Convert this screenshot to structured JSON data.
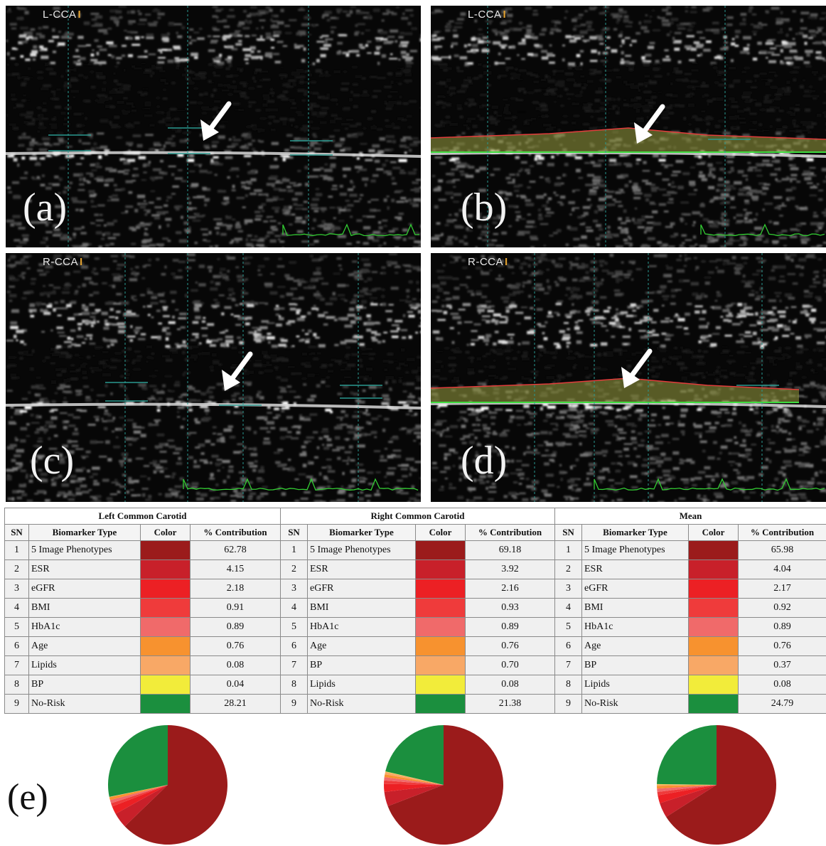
{
  "panels": {
    "a": {
      "view": "L-CCA",
      "letter": "(a)",
      "segmented": false
    },
    "b": {
      "view": "L-CCA",
      "letter": "(b)",
      "segmented": true
    },
    "c": {
      "view": "R-CCA",
      "letter": "(c)",
      "segmented": false
    },
    "d": {
      "view": "R-CCA",
      "letter": "(d)",
      "segmented": true
    }
  },
  "panel_e_label": "(e)",
  "table": {
    "columns": {
      "sn": "SN",
      "biomarker": "Biomarker Type",
      "color": "Color",
      "contribution": "% Contribution"
    },
    "groups": [
      {
        "title": "Left Common Carotid",
        "rows": [
          {
            "sn": "1",
            "biomarker": "5 Image Phenotypes",
            "color": "#9b1b1b",
            "contribution": "62.78"
          },
          {
            "sn": "2",
            "biomarker": "ESR",
            "color": "#c8202a",
            "contribution": "4.15"
          },
          {
            "sn": "3",
            "biomarker": "eGFR",
            "color": "#ec2024",
            "contribution": "2.18"
          },
          {
            "sn": "4",
            "biomarker": "BMI",
            "color": "#ef3b3b",
            "contribution": "0.91"
          },
          {
            "sn": "5",
            "biomarker": "HbA1c",
            "color": "#f06a6a",
            "contribution": "0.89"
          },
          {
            "sn": "6",
            "biomarker": "Age",
            "color": "#f7922f",
            "contribution": "0.76"
          },
          {
            "sn": "7",
            "biomarker": "Lipids",
            "color": "#f8a866",
            "contribution": "0.08"
          },
          {
            "sn": "8",
            "biomarker": "BP",
            "color": "#f2ec3a",
            "contribution": "0.04"
          },
          {
            "sn": "9",
            "biomarker": "No-Risk",
            "color": "#1b8f3e",
            "contribution": "28.21"
          }
        ]
      },
      {
        "title": "Right Common Carotid",
        "rows": [
          {
            "sn": "1",
            "biomarker": "5 Image Phenotypes",
            "color": "#9b1b1b",
            "contribution": "69.18"
          },
          {
            "sn": "2",
            "biomarker": "ESR",
            "color": "#c8202a",
            "contribution": "3.92"
          },
          {
            "sn": "3",
            "biomarker": "eGFR",
            "color": "#ec2024",
            "contribution": "2.16"
          },
          {
            "sn": "4",
            "biomarker": "BMI",
            "color": "#ef3b3b",
            "contribution": "0.93"
          },
          {
            "sn": "5",
            "biomarker": "HbA1c",
            "color": "#f06a6a",
            "contribution": "0.89"
          },
          {
            "sn": "6",
            "biomarker": "Age",
            "color": "#f7922f",
            "contribution": "0.76"
          },
          {
            "sn": "7",
            "biomarker": "BP",
            "color": "#f8a866",
            "contribution": "0.70"
          },
          {
            "sn": "8",
            "biomarker": "Lipids",
            "color": "#f2ec3a",
            "contribution": "0.08"
          },
          {
            "sn": "9",
            "biomarker": "No-Risk",
            "color": "#1b8f3e",
            "contribution": "21.38"
          }
        ]
      },
      {
        "title": "Mean",
        "rows": [
          {
            "sn": "1",
            "biomarker": "5 Image Phenotypes",
            "color": "#9b1b1b",
            "contribution": "65.98"
          },
          {
            "sn": "2",
            "biomarker": "ESR",
            "color": "#c8202a",
            "contribution": "4.04"
          },
          {
            "sn": "3",
            "biomarker": "eGFR",
            "color": "#ec2024",
            "contribution": "2.17"
          },
          {
            "sn": "4",
            "biomarker": "BMI",
            "color": "#ef3b3b",
            "contribution": "0.92"
          },
          {
            "sn": "5",
            "biomarker": "HbA1c",
            "color": "#f06a6a",
            "contribution": "0.89"
          },
          {
            "sn": "6",
            "biomarker": "Age",
            "color": "#f7922f",
            "contribution": "0.76"
          },
          {
            "sn": "7",
            "biomarker": "BP",
            "color": "#f8a866",
            "contribution": "0.37"
          },
          {
            "sn": "8",
            "biomarker": "Lipids",
            "color": "#f2ec3a",
            "contribution": "0.08"
          },
          {
            "sn": "9",
            "biomarker": "No-Risk",
            "color": "#1b8f3e",
            "contribution": "24.79"
          }
        ]
      }
    ]
  },
  "chart_data": [
    {
      "type": "pie",
      "categories": [
        "5 Image Phenotypes",
        "ESR",
        "eGFR",
        "BMI",
        "HbA1c",
        "Age",
        "Lipids",
        "BP",
        "No-Risk"
      ],
      "values": [
        62.78,
        4.15,
        2.18,
        0.91,
        0.89,
        0.76,
        0.08,
        0.04,
        28.21
      ],
      "colors": [
        "#9b1b1b",
        "#c8202a",
        "#ec2024",
        "#ef3b3b",
        "#f06a6a",
        "#f7922f",
        "#f8a866",
        "#f2ec3a",
        "#1b8f3e"
      ]
    },
    {
      "type": "pie",
      "categories": [
        "5 Image Phenotypes",
        "ESR",
        "eGFR",
        "BMI",
        "HbA1c",
        "Age",
        "BP",
        "Lipids",
        "No-Risk"
      ],
      "values": [
        69.18,
        3.92,
        2.16,
        0.93,
        0.89,
        0.76,
        0.7,
        0.08,
        21.38
      ],
      "colors": [
        "#9b1b1b",
        "#c8202a",
        "#ec2024",
        "#ef3b3b",
        "#f06a6a",
        "#f7922f",
        "#f8a866",
        "#f2ec3a",
        "#1b8f3e"
      ]
    },
    {
      "type": "pie",
      "categories": [
        "5 Image Phenotypes",
        "ESR",
        "eGFR",
        "BMI",
        "HbA1c",
        "Age",
        "BP",
        "Lipids",
        "No-Risk"
      ],
      "values": [
        65.98,
        4.04,
        2.17,
        0.92,
        0.89,
        0.76,
        0.37,
        0.08,
        24.79
      ],
      "colors": [
        "#9b1b1b",
        "#c8202a",
        "#ec2024",
        "#ef3b3b",
        "#f06a6a",
        "#f7922f",
        "#f8a866",
        "#f2ec3a",
        "#1b8f3e"
      ]
    }
  ]
}
